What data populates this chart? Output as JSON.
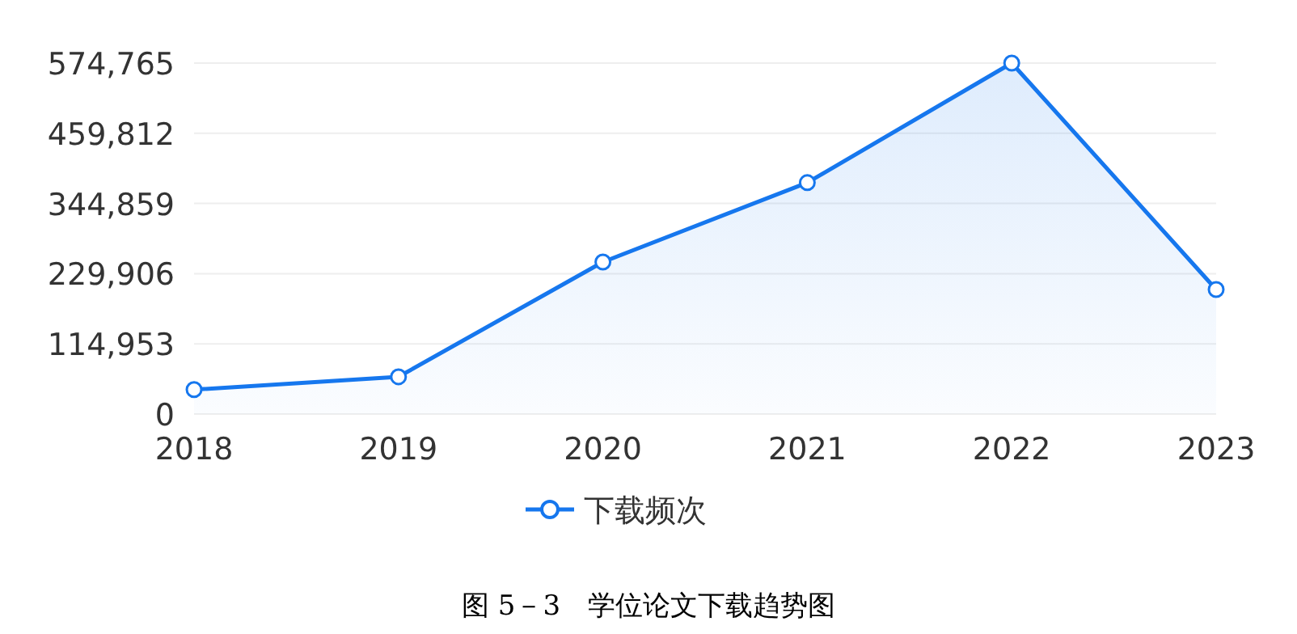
{
  "chart_data": {
    "type": "area",
    "categories": [
      "2018",
      "2019",
      "2020",
      "2021",
      "2022",
      "2023"
    ],
    "series": [
      {
        "name": "下载频次",
        "color": "#1677ee",
        "values": [
          40000,
          61000,
          249000,
          379000,
          574765,
          204000
        ]
      }
    ],
    "ylim": [
      0,
      574765
    ],
    "yticks": [
      0,
      {
        "value": 114953,
        "label": "114,953"
      },
      {
        "value": 229906,
        "label": "229,906"
      },
      {
        "value": 344859,
        "label": "344,859"
      },
      {
        "value": 459812,
        "label": "459,812"
      },
      {
        "value": 574765,
        "label": "574,765"
      }
    ],
    "grid": "y",
    "legend": "bottom",
    "marker": "circle",
    "annotations": [
      "图 5－3　学位论文下载趋势图"
    ]
  }
}
